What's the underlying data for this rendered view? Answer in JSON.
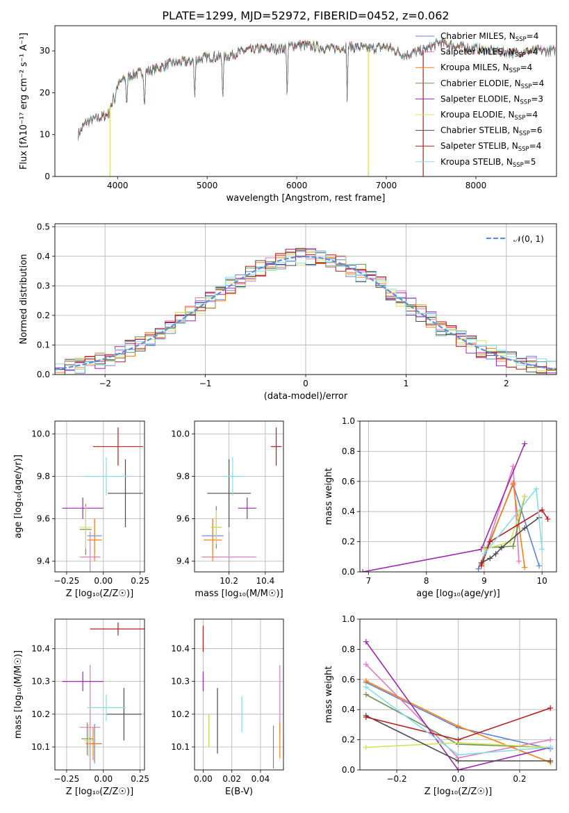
{
  "palette": {
    "chabrier_miles": "#5b84d8",
    "salpeter_miles": "#e377c2",
    "kroupa_miles": "#ff7f0e",
    "chabrier_elodie": "#6f8f4f",
    "salpeter_elodie": "#9c27b0",
    "kroupa_elodie": "#d4e157",
    "chabrier_stelib": "#4a4a4a",
    "salpeter_stelib": "#b71c1c",
    "kroupa_stelib": "#80deea",
    "normal": "#5b8fd9"
  },
  "chart_data": [
    {
      "id": "spectrum",
      "type": "line",
      "title": "PLATE=1299, MJD=52972, FIBERID=0452, z=0.062",
      "xlabel": "wavelength [Angstrom, rest frame]",
      "ylabel": "Flux [fλ10⁻¹⁷ erg cm⁻² s⁻¹ A⁻¹]",
      "xlim": [
        3300,
        8900
      ],
      "ylim": [
        0,
        36
      ],
      "xticks": [
        4000,
        5000,
        6000,
        7000,
        8000
      ],
      "yticks": [
        0,
        10,
        20,
        30
      ],
      "grid": false,
      "legend_position": "right",
      "continuum": [
        [
          3560,
          10
        ],
        [
          3650,
          13
        ],
        [
          3800,
          14
        ],
        [
          3900,
          15
        ],
        [
          3950,
          20
        ],
        [
          4050,
          23
        ],
        [
          4200,
          24.5
        ],
        [
          4400,
          25.5
        ],
        [
          4600,
          27
        ],
        [
          4800,
          27.5
        ],
        [
          5000,
          28.5
        ],
        [
          5200,
          28.5
        ],
        [
          5400,
          30
        ],
        [
          5600,
          30.5
        ],
        [
          5800,
          30.5
        ],
        [
          6000,
          31.5
        ],
        [
          6200,
          31
        ],
        [
          6400,
          30.5
        ],
        [
          6600,
          31
        ],
        [
          6800,
          30.5
        ],
        [
          7000,
          31
        ],
        [
          7200,
          29
        ],
        [
          7400,
          30
        ],
        [
          7600,
          32
        ],
        [
          7800,
          31
        ],
        [
          8000,
          30.5
        ],
        [
          8200,
          30
        ],
        [
          8400,
          29.5
        ],
        [
          8600,
          30
        ]
      ],
      "absorption_lines": [
        [
          3934,
          5
        ],
        [
          3969,
          7
        ],
        [
          4102,
          14
        ],
        [
          4300,
          18
        ],
        [
          4861,
          20
        ],
        [
          5175,
          20
        ],
        [
          5893,
          24
        ],
        [
          6563,
          24
        ]
      ],
      "legend": [
        {
          "key": "chabrier_miles",
          "main": "Chabrier MILES, N",
          "sub": "SSP",
          "tail": "=4"
        },
        {
          "key": "salpeter_miles",
          "main": "Salpeter MILES, N",
          "sub": "SSP",
          "tail": "=4"
        },
        {
          "key": "kroupa_miles",
          "main": "Kroupa MILES, N",
          "sub": "SSP",
          "tail": "=4"
        },
        {
          "key": "chabrier_elodie",
          "main": "Chabrier ELODIE, N",
          "sub": "SSP",
          "tail": "=4"
        },
        {
          "key": "salpeter_elodie",
          "main": "Salpeter ELODIE, N",
          "sub": "SSP",
          "tail": "=3"
        },
        {
          "key": "kroupa_elodie",
          "main": "Kroupa ELODIE, N",
          "sub": "SSP",
          "tail": "=4"
        },
        {
          "key": "chabrier_stelib",
          "main": "Chabrier STELIB, N",
          "sub": "SSP",
          "tail": "=6"
        },
        {
          "key": "salpeter_stelib",
          "main": "Salpeter STELIB, N",
          "sub": "SSP",
          "tail": "=4"
        },
        {
          "key": "kroupa_stelib",
          "main": "Kroupa STELIB, N",
          "sub": "SSP",
          "tail": "=5"
        }
      ]
    },
    {
      "id": "residuals",
      "type": "line",
      "xlabel": "(data-model)/error",
      "ylabel": "Normed distribution",
      "xlim": [
        -2.5,
        2.5
      ],
      "ylim": [
        0,
        0.51
      ],
      "xticks": [
        -2,
        -1,
        0,
        1,
        2
      ],
      "yticks": [
        0.0,
        0.1,
        0.2,
        0.3,
        0.4,
        0.5
      ],
      "grid": true,
      "legend_position": "top-right",
      "legend_label": "𝒩(0, 1)",
      "histogram_bin_width": 0.1
    },
    {
      "id": "age_vs_Z",
      "type": "scatter",
      "xlabel": "Z [log₁₀(Z/Z☉)]",
      "ylabel": "age  [log₁₀(age/yr)]",
      "xlim": [
        -0.33,
        0.28
      ],
      "ylim": [
        9.35,
        10.06
      ],
      "xticks": [
        -0.25,
        0.0,
        0.25
      ],
      "yticks": [
        9.4,
        9.6,
        9.8,
        10.0
      ],
      "grid": true,
      "points": [
        {
          "key": "chabrier_miles",
          "x": -0.06,
          "y": 9.52,
          "xerr": 0.05,
          "yerr": 0.08
        },
        {
          "key": "salpeter_miles",
          "x": -0.09,
          "y": 9.42,
          "xerr": 0.07,
          "yerr": 0.12
        },
        {
          "key": "kroupa_miles",
          "x": -0.06,
          "y": 9.5,
          "xerr": 0.05,
          "yerr": 0.1
        },
        {
          "key": "chabrier_elodie",
          "x": -0.12,
          "y": 9.55,
          "xerr": 0.04,
          "yerr": 0.12
        },
        {
          "key": "salpeter_elodie",
          "x": -0.14,
          "y": 9.65,
          "xerr": 0.14,
          "yerr": 0.05
        },
        {
          "key": "kroupa_elodie",
          "x": -0.12,
          "y": 9.56,
          "xerr": 0.04,
          "yerr": 0.1
        },
        {
          "key": "chabrier_stelib",
          "x": 0.15,
          "y": 9.72,
          "xerr": 0.12,
          "yerr": 0.16
        },
        {
          "key": "salpeter_stelib",
          "x": 0.1,
          "y": 9.94,
          "xerr": 0.17,
          "yerr": 0.09
        },
        {
          "key": "kroupa_stelib",
          "x": 0.02,
          "y": 9.8,
          "xerr": 0.15,
          "yerr": 0.09
        }
      ]
    },
    {
      "id": "age_vs_mass",
      "type": "scatter",
      "xlabel": "mass [log₁₀(M/M☉)]",
      "ylabel": "",
      "xlim": [
        10.01,
        10.5
      ],
      "ylim": [
        9.35,
        10.06
      ],
      "xticks": [
        10.2,
        10.4
      ],
      "yticks": [
        9.4,
        9.6,
        9.8,
        10.0
      ],
      "grid": true,
      "points": [
        {
          "key": "chabrier_miles",
          "x": 10.11,
          "y": 9.52,
          "xerr": 0.06,
          "yerr": 0.08
        },
        {
          "key": "salpeter_miles",
          "x": 10.2,
          "y": 9.42,
          "xerr": 0.15,
          "yerr": 0.12
        },
        {
          "key": "kroupa_miles",
          "x": 10.11,
          "y": 9.5,
          "xerr": 0.05,
          "yerr": 0.1
        },
        {
          "key": "chabrier_elodie",
          "x": 10.13,
          "y": 9.56,
          "xerr": 0.03,
          "yerr": 0.1
        },
        {
          "key": "salpeter_elodie",
          "x": 10.3,
          "y": 9.65,
          "xerr": 0.05,
          "yerr": 0.05
        },
        {
          "key": "kroupa_elodie",
          "x": 10.13,
          "y": 9.56,
          "xerr": 0.03,
          "yerr": 0.08
        },
        {
          "key": "chabrier_stelib",
          "x": 10.2,
          "y": 9.72,
          "xerr": 0.12,
          "yerr": 0.16
        },
        {
          "key": "salpeter_stelib",
          "x": 10.46,
          "y": 9.94,
          "xerr": 0.03,
          "yerr": 0.09
        },
        {
          "key": "kroupa_stelib",
          "x": 10.22,
          "y": 9.8,
          "xerr": 0.05,
          "yerr": 0.09
        }
      ]
    },
    {
      "id": "weight_vs_age",
      "type": "line",
      "xlabel": "age  [log₁₀(age/yr)]",
      "ylabel": "mass weight",
      "xlim": [
        6.85,
        10.25
      ],
      "ylim": [
        0,
        1.0
      ],
      "xticks": [
        7,
        8,
        9,
        10
      ],
      "yticks": [
        0.0,
        0.2,
        0.4,
        0.6,
        0.8,
        1.0
      ],
      "grid": true,
      "series": [
        {
          "key": "chabrier_miles",
          "x": [
            8.9,
            9.5,
            9.95
          ],
          "y": [
            0.02,
            0.58,
            0.04
          ]
        },
        {
          "key": "salpeter_miles",
          "x": [
            8.95,
            9.5,
            9.6
          ],
          "y": [
            0.05,
            0.7,
            0.07
          ]
        },
        {
          "key": "kroupa_miles",
          "x": [
            8.95,
            9.5,
            9.7
          ],
          "y": [
            0.05,
            0.59,
            0.03
          ]
        },
        {
          "key": "chabrier_elodie",
          "x": [
            9.0,
            9.5,
            9.7
          ],
          "y": [
            0.16,
            0.17,
            0.5
          ]
        },
        {
          "key": "salpeter_elodie",
          "x": [
            6.9,
            8.95,
            9.7
          ],
          "y": [
            0.0,
            0.15,
            0.85
          ]
        },
        {
          "key": "kroupa_elodie",
          "x": [
            9.0,
            9.45,
            9.7
          ],
          "y": [
            0.15,
            0.2,
            0.5
          ]
        },
        {
          "key": "chabrier_stelib",
          "x": [
            8.95,
            9.1,
            9.2,
            9.3,
            9.7,
            9.95
          ],
          "y": [
            0.06,
            0.09,
            0.12,
            0.16,
            0.29,
            0.36
          ]
        },
        {
          "key": "salpeter_stelib",
          "x": [
            8.95,
            9.1,
            10.0,
            10.1
          ],
          "y": [
            0.04,
            0.2,
            0.41,
            0.35
          ]
        },
        {
          "key": "kroupa_stelib",
          "x": [
            9.0,
            9.9,
            10.0
          ],
          "y": [
            0.12,
            0.55,
            0.15
          ]
        }
      ]
    },
    {
      "id": "mass_vs_Z",
      "type": "scatter",
      "xlabel": "Z [log₁₀(Z/Z☉)]",
      "ylabel": "mass [log₁₀(M/M☉)]",
      "xlim": [
        -0.33,
        0.28
      ],
      "ylim": [
        10.03,
        10.49
      ],
      "xticks": [
        -0.25,
        0.0,
        0.25
      ],
      "yticks": [
        10.1,
        10.2,
        10.3,
        10.4
      ],
      "grid": true,
      "points": [
        {
          "key": "chabrier_miles",
          "x": -0.06,
          "y": 10.11,
          "xerr": 0.05,
          "yerr": 0.06
        },
        {
          "key": "salpeter_miles",
          "x": -0.09,
          "y": 10.16,
          "xerr": 0.07,
          "yerr": 0.19
        },
        {
          "key": "kroupa_miles",
          "x": -0.07,
          "y": 10.11,
          "xerr": 0.05,
          "yerr": 0.05
        },
        {
          "key": "chabrier_elodie",
          "x": -0.11,
          "y": 10.125,
          "xerr": 0.04,
          "yerr": 0.05
        },
        {
          "key": "salpeter_elodie",
          "x": -0.14,
          "y": 10.3,
          "xerr": 0.14,
          "yerr": 0.03
        },
        {
          "key": "kroupa_elodie",
          "x": -0.1,
          "y": 10.12,
          "xerr": 0.03,
          "yerr": 0.05
        },
        {
          "key": "chabrier_stelib",
          "x": 0.14,
          "y": 10.2,
          "xerr": 0.12,
          "yerr": 0.08
        },
        {
          "key": "salpeter_stelib",
          "x": 0.1,
          "y": 10.46,
          "xerr": 0.19,
          "yerr": 0.02
        },
        {
          "key": "kroupa_stelib",
          "x": 0.02,
          "y": 10.22,
          "xerr": 0.13,
          "yerr": 0.04
        }
      ]
    },
    {
      "id": "mass_vs_ebv",
      "type": "scatter",
      "xlabel": "E(B-V)",
      "ylabel": "",
      "xlim": [
        -0.006,
        0.056
      ],
      "ylim": [
        10.03,
        10.49
      ],
      "xticks": [
        0.0,
        0.02,
        0.04
      ],
      "yticks": [
        10.1,
        10.2,
        10.3,
        10.4
      ],
      "grid": true,
      "points": [
        {
          "key": "chabrier_miles",
          "x": 0.049,
          "y": 10.1,
          "xerr": 0.0,
          "yerr": 0.065
        },
        {
          "key": "salpeter_miles",
          "x": 0.0535,
          "y": 10.24,
          "xerr": 0.0,
          "yerr": 0.11
        },
        {
          "key": "kroupa_miles",
          "x": 0.0535,
          "y": 10.12,
          "xerr": 0.0,
          "yerr": 0.055
        },
        {
          "key": "chabrier_elodie",
          "x": 0.004,
          "y": 10.15,
          "xerr": 0.0,
          "yerr": 0.05
        },
        {
          "key": "salpeter_elodie",
          "x": 0.0,
          "y": 10.3,
          "xerr": 0.0,
          "yerr": 0.03
        },
        {
          "key": "kroupa_elodie",
          "x": 0.004,
          "y": 10.15,
          "xerr": 0.0,
          "yerr": 0.05
        },
        {
          "key": "chabrier_stelib",
          "x": 0.01,
          "y": 10.18,
          "xerr": 0.0,
          "yerr": 0.1
        },
        {
          "key": "salpeter_stelib",
          "x": 0.0,
          "y": 10.43,
          "xerr": 0.0,
          "yerr": 0.04
        },
        {
          "key": "kroupa_stelib",
          "x": 0.027,
          "y": 10.2,
          "xerr": 0.0,
          "yerr": 0.055
        }
      ]
    },
    {
      "id": "weight_vs_Z",
      "type": "line",
      "xlabel": "Z [log₁₀(Z/Z☉)]",
      "ylabel": "mass weight",
      "xlim": [
        -0.32,
        0.32
      ],
      "ylim": [
        0,
        1.0
      ],
      "xticks": [
        -0.2,
        0.0,
        0.2
      ],
      "yticks": [
        0.0,
        0.2,
        0.4,
        0.6,
        0.8,
        1.0
      ],
      "grid": true,
      "series": [
        {
          "key": "chabrier_miles",
          "x": [
            -0.3,
            0.0,
            0.3
          ],
          "y": [
            0.58,
            0.28,
            0.14
          ]
        },
        {
          "key": "salpeter_miles",
          "x": [
            -0.3,
            0.0,
            0.3
          ],
          "y": [
            0.7,
            0.08,
            0.2
          ]
        },
        {
          "key": "kroupa_miles",
          "x": [
            -0.3,
            0.0,
            0.3
          ],
          "y": [
            0.59,
            0.29,
            0.05
          ]
        },
        {
          "key": "chabrier_elodie",
          "x": [
            -0.3,
            0.0,
            0.3
          ],
          "y": [
            0.5,
            0.17,
            0.15
          ]
        },
        {
          "key": "salpeter_elodie",
          "x": [
            -0.3,
            0.0,
            0.3
          ],
          "y": [
            0.85,
            0.0,
            0.15
          ]
        },
        {
          "key": "kroupa_elodie",
          "x": [
            -0.3,
            0.0,
            0.3
          ],
          "y": [
            0.15,
            0.18,
            0.15
          ]
        },
        {
          "key": "chabrier_stelib",
          "x": [
            -0.3,
            0.0,
            0.3
          ],
          "y": [
            0.36,
            0.06,
            0.06
          ]
        },
        {
          "key": "salpeter_stelib",
          "x": [
            -0.3,
            0.0,
            0.3
          ],
          "y": [
            0.35,
            0.2,
            0.41
          ]
        },
        {
          "key": "kroupa_stelib",
          "x": [
            -0.3,
            0.0,
            0.3
          ],
          "y": [
            0.55,
            0.1,
            0.15
          ]
        }
      ]
    }
  ]
}
